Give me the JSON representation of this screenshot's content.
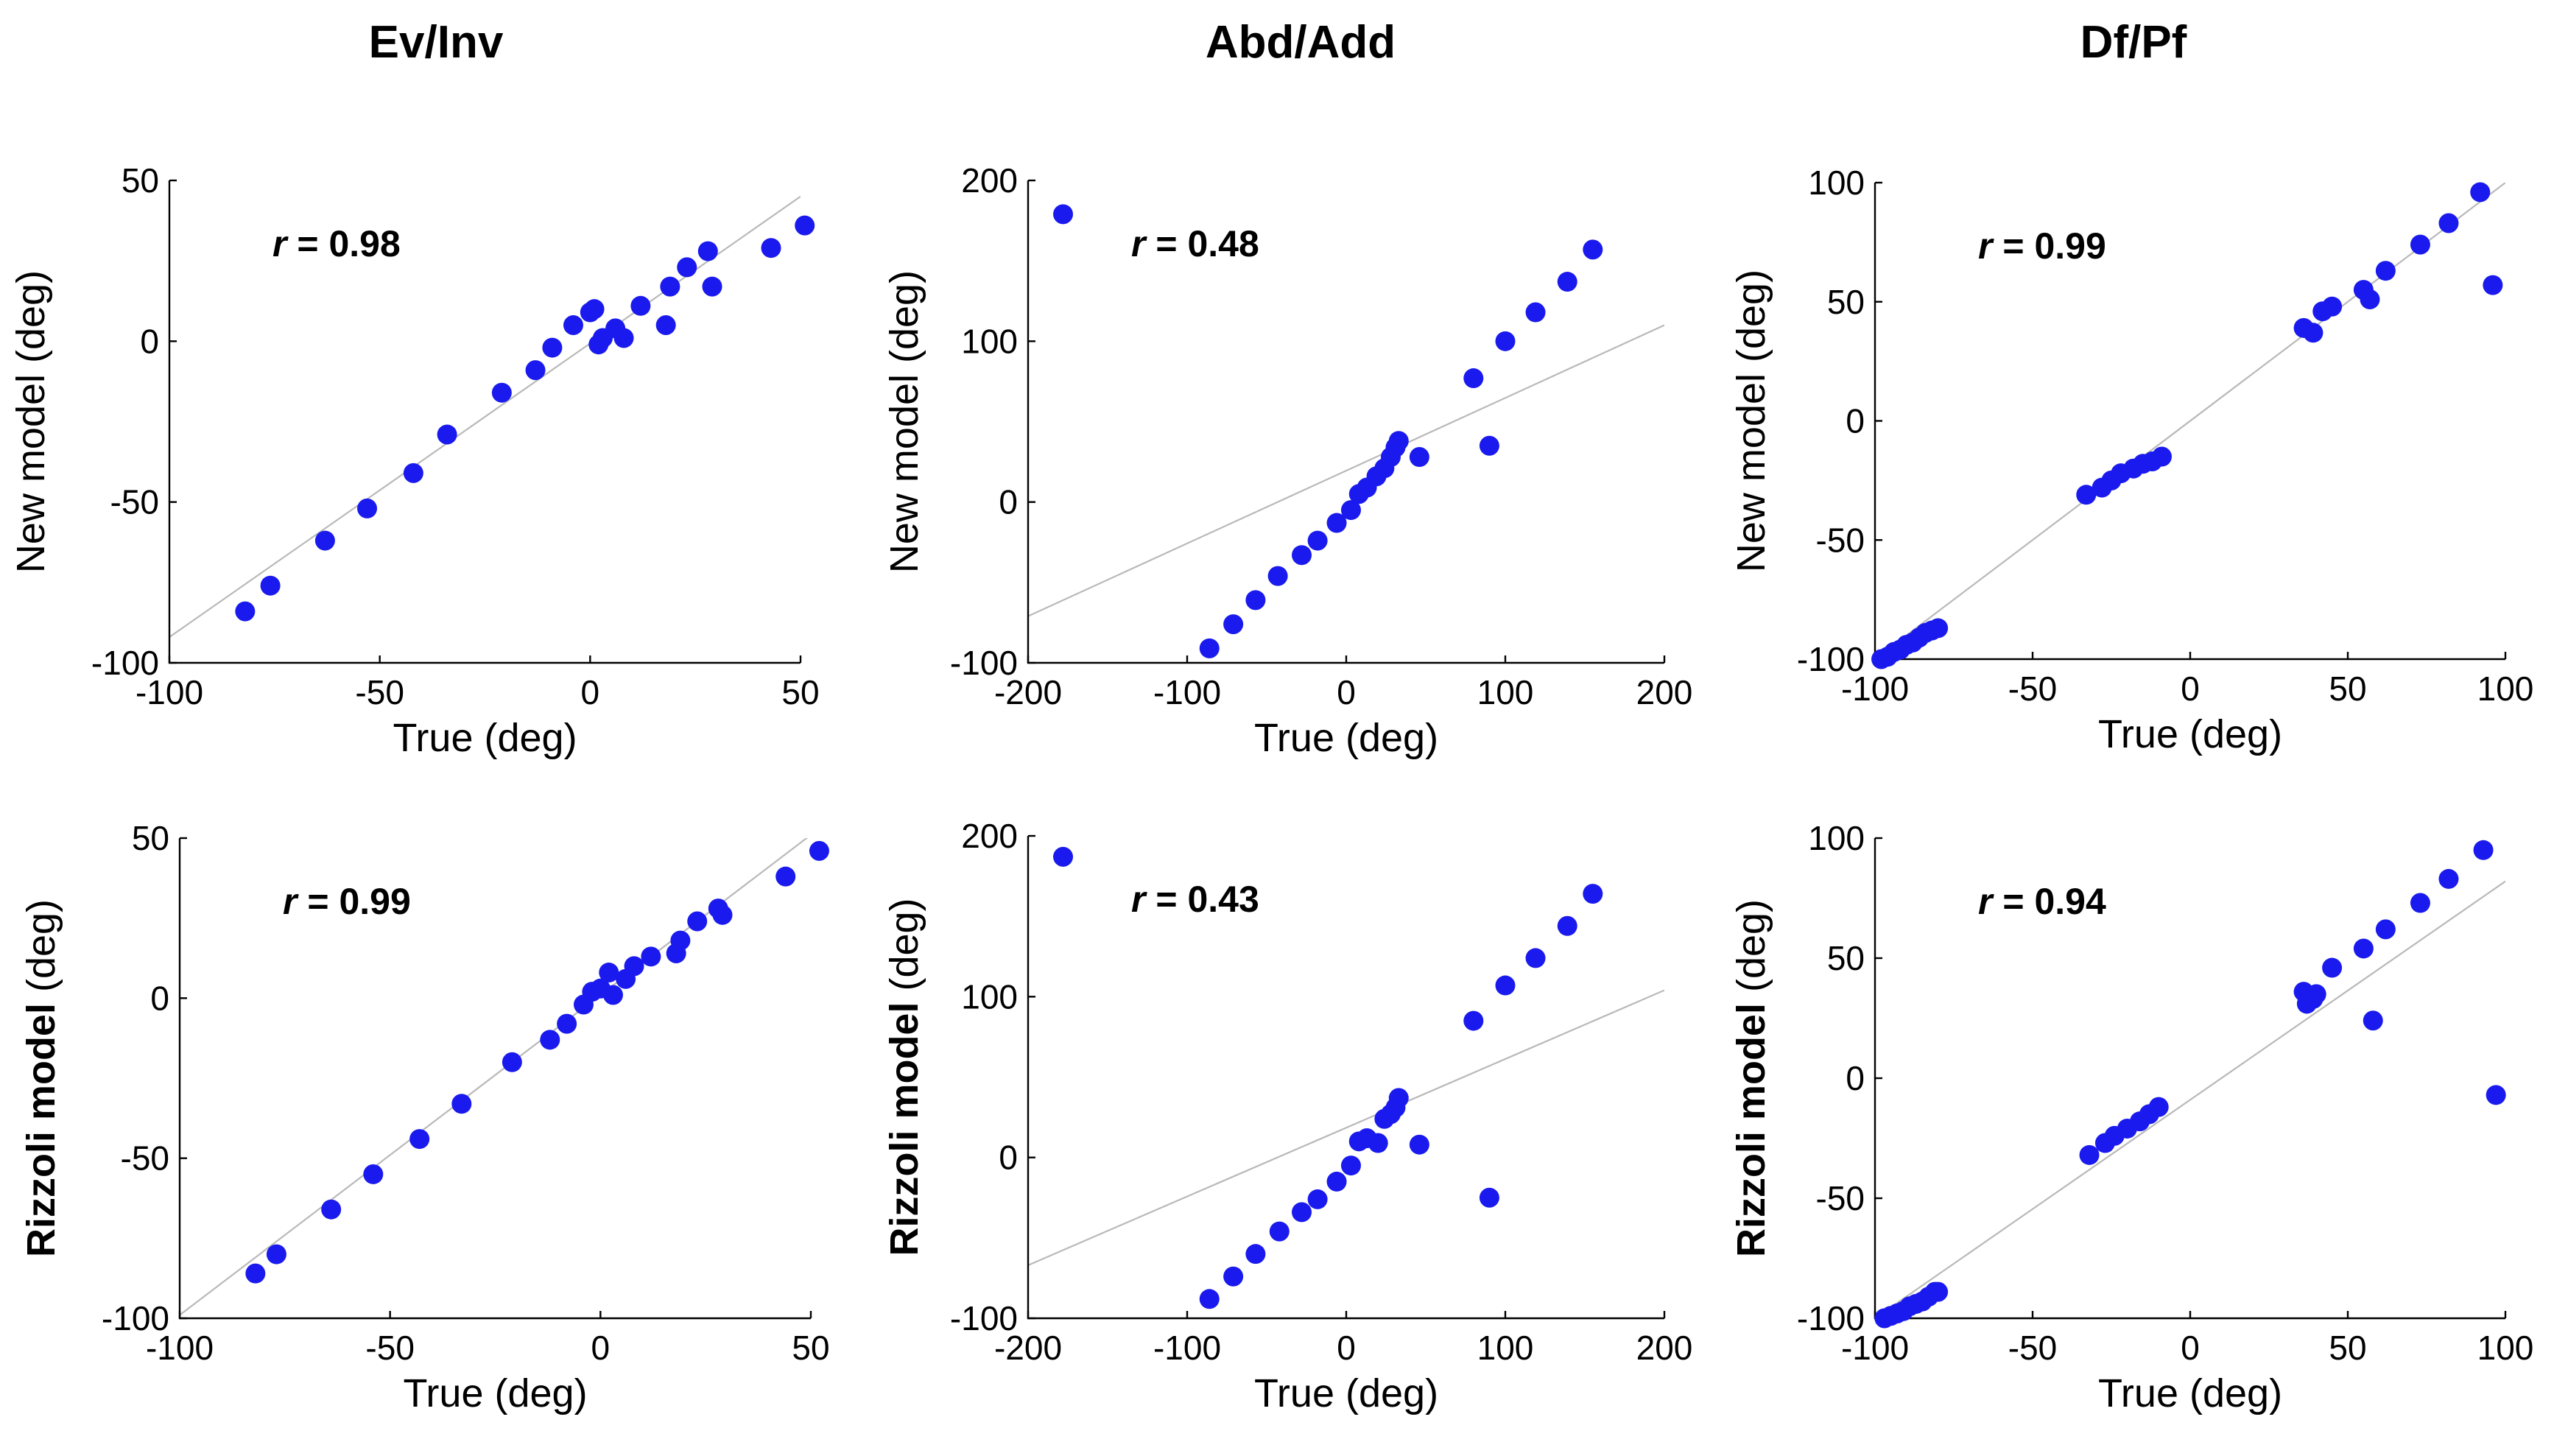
{
  "figure": {
    "columns": [
      "Ev/Inv",
      "Abd/Add",
      "Df/Pf"
    ],
    "colors": {
      "point": "#1a1aee",
      "identity_line": "#b9b9b9",
      "axis": "#000000"
    }
  },
  "chart_data": [
    {
      "type": "scatter",
      "row": "New model",
      "column": "Ev/Inv",
      "xlabel": "True (deg)",
      "ylabel": "New model (deg)",
      "r_prefix": "r",
      "r_value": "= 0.98",
      "xlim": [
        -100,
        50
      ],
      "ylim": [
        -100,
        50
      ],
      "xticks": [
        -100,
        -50,
        0,
        50
      ],
      "yticks": [
        -100,
        -50,
        0,
        50
      ],
      "x": [
        -82,
        -76,
        -63,
        -53,
        -42,
        -34,
        -21,
        -13,
        -9,
        -4,
        0,
        1,
        2,
        3,
        6,
        8,
        12,
        18,
        19,
        23,
        28,
        29,
        43,
        51
      ],
      "y": [
        -84,
        -76,
        -62,
        -52,
        -41,
        -29,
        -16,
        -9,
        -2,
        5,
        9,
        10,
        -1,
        1,
        4,
        1,
        11,
        5,
        17,
        23,
        28,
        17,
        29,
        36
      ],
      "line": [
        [
          -100,
          -92
        ],
        [
          50,
          45
        ]
      ]
    },
    {
      "type": "scatter",
      "row": "New model",
      "column": "Abd/Add",
      "xlabel": "True (deg)",
      "ylabel": "New model (deg)",
      "r_prefix": "r",
      "r_value": "= 0.48",
      "xlim": [
        -200,
        200
      ],
      "ylim": [
        -100,
        200
      ],
      "xticks": [
        -200,
        -100,
        0,
        100,
        200
      ],
      "yticks": [
        -100,
        0,
        100,
        200
      ],
      "x": [
        -178,
        -86,
        -71,
        -57,
        -43,
        -28,
        -18,
        -6,
        3,
        8,
        13,
        19,
        24,
        28,
        31,
        33,
        46,
        80,
        90,
        100,
        119,
        139,
        155
      ],
      "y": [
        179,
        -91,
        -76,
        -61,
        -46,
        -33,
        -24,
        -13,
        -5,
        5,
        9,
        16,
        21,
        28,
        34,
        38,
        28,
        77,
        35,
        100,
        118,
        137,
        157
      ],
      "line": [
        [
          -200,
          -71
        ],
        [
          200,
          110
        ]
      ]
    },
    {
      "type": "scatter",
      "row": "New model",
      "column": "Df/Pf",
      "xlabel": "True (deg)",
      "ylabel": "New model (deg)",
      "r_prefix": "r",
      "r_value": "= 0.99",
      "xlim": [
        -100,
        100
      ],
      "ylim": [
        -100,
        100
      ],
      "xticks": [
        -100,
        -50,
        0,
        50,
        100
      ],
      "yticks": [
        -100,
        -50,
        0,
        50,
        100
      ],
      "x": [
        -98,
        -96,
        -94,
        -92,
        -90,
        -88,
        -86,
        -84,
        -82,
        -80,
        -33,
        -28,
        -25,
        -22,
        -18,
        -15,
        -12,
        -9,
        36,
        39,
        42,
        45,
        55,
        57,
        62,
        73,
        82,
        92,
        96
      ],
      "y": [
        -100,
        -99,
        -97,
        -96,
        -94,
        -93,
        -91,
        -89,
        -88,
        -87,
        -31,
        -28,
        -25,
        -22,
        -20,
        -18,
        -17,
        -15,
        39,
        37,
        46,
        48,
        55,
        51,
        63,
        74,
        83,
        96,
        57
      ],
      "line": [
        [
          -100,
          -100
        ],
        [
          100,
          100
        ]
      ]
    },
    {
      "type": "scatter",
      "row": "Rizzoli model",
      "column": "Ev/Inv",
      "xlabel": "True (deg)",
      "ylabel": "Rizzoli model (deg)",
      "r_prefix": "r",
      "r_value": "= 0.99",
      "xlim": [
        -100,
        50
      ],
      "ylim": [
        -100,
        50
      ],
      "xticks": [
        -100,
        -50,
        0,
        50
      ],
      "yticks": [
        -100,
        -50,
        0,
        50
      ],
      "x": [
        -82,
        -77,
        -64,
        -54,
        -43,
        -33,
        -21,
        -12,
        -8,
        -4,
        -2,
        0,
        2,
        3,
        6,
        8,
        12,
        18,
        19,
        23,
        28,
        29,
        44,
        52
      ],
      "y": [
        -86,
        -80,
        -66,
        -55,
        -44,
        -33,
        -20,
        -13,
        -8,
        -2,
        2,
        3,
        8,
        1,
        6,
        10,
        13,
        14,
        18,
        24,
        28,
        26,
        38,
        46
      ],
      "line": [
        [
          -100,
          -99
        ],
        [
          50,
          51
        ]
      ]
    },
    {
      "type": "scatter",
      "row": "Rizzoli model",
      "column": "Abd/Add",
      "xlabel": "True (deg)",
      "ylabel": "Rizzoli model (deg)",
      "r_prefix": "r",
      "r_value": "= 0.43",
      "xlim": [
        -200,
        200
      ],
      "ylim": [
        -100,
        200
      ],
      "xticks": [
        -200,
        -100,
        0,
        100,
        200
      ],
      "yticks": [
        -100,
        0,
        100,
        200
      ],
      "x": [
        -178,
        -86,
        -71,
        -57,
        -42,
        -28,
        -18,
        -6,
        3,
        8,
        13,
        20,
        24,
        28,
        31,
        33,
        46,
        80,
        90,
        100,
        119,
        139,
        155
      ],
      "y": [
        187,
        -88,
        -74,
        -60,
        -46,
        -34,
        -26,
        -15,
        -5,
        10,
        12,
        9,
        24,
        27,
        31,
        37,
        8,
        85,
        -25,
        107,
        124,
        144,
        164
      ],
      "line": [
        [
          -200,
          -67
        ],
        [
          200,
          104
        ]
      ]
    },
    {
      "type": "scatter",
      "row": "Rizzoli model",
      "column": "Df/Pf",
      "xlabel": "True (deg)",
      "ylabel": "Rizzoli model (deg)",
      "r_prefix": "r",
      "r_value": "= 0.94",
      "xlim": [
        -100,
        100
      ],
      "ylim": [
        -100,
        100
      ],
      "xticks": [
        -100,
        -50,
        0,
        50,
        100
      ],
      "yticks": [
        -100,
        -50,
        0,
        50,
        100
      ],
      "x": [
        -97,
        -95,
        -93,
        -91,
        -89,
        -87,
        -85,
        -83,
        -81,
        -80,
        -32,
        -27,
        -24,
        -20,
        -16,
        -13,
        -10,
        36,
        37,
        39,
        40,
        45,
        55,
        58,
        62,
        73,
        82,
        93,
        97
      ],
      "y": [
        -100,
        -99,
        -98,
        -97,
        -95,
        -94,
        -93,
        -91,
        -89,
        -89,
        -32,
        -27,
        -24,
        -21,
        -18,
        -15,
        -12,
        36,
        31,
        33,
        35,
        46,
        54,
        24,
        62,
        73,
        83,
        95,
        -7
      ],
      "line": [
        [
          -100,
          -100
        ],
        [
          100,
          82
        ]
      ]
    }
  ]
}
